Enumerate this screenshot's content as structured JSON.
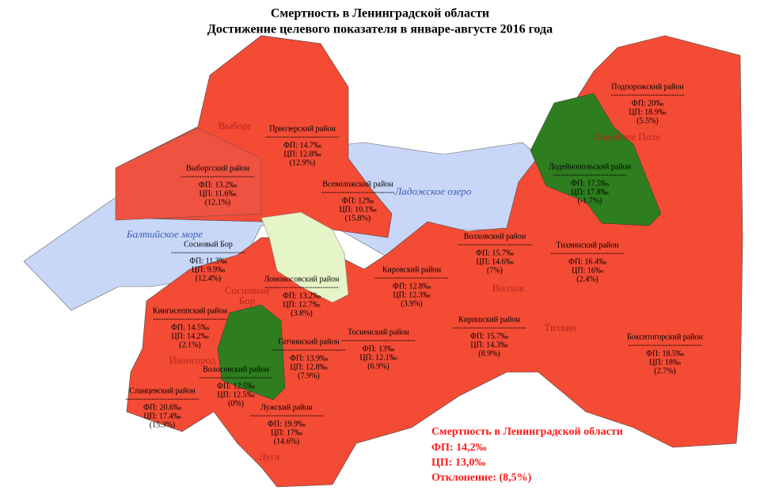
{
  "header": {
    "title": [
      "Смертность в Ленинградской области",
      "Достижение целевого показателя в январе-августе 2016 года"
    ]
  },
  "separator": "----------------------------",
  "districts": [
    {
      "name": "Подпорожский район",
      "fp": "ФП: 20‰",
      "cp": "ЦП: 18.9‰",
      "deviation": "(5.5%)"
    },
    {
      "name": "Приозерский район",
      "fp": "ФП: 14.7‰",
      "cp": "ЦП: 12.8‰",
      "deviation": "(12.9%)"
    },
    {
      "name": "Выборгский район",
      "fp": "ФП: 13.2‰",
      "cp": "ЦП: 11.6‰",
      "deviation": "(12.1%)"
    },
    {
      "name": "Всеволожский район",
      "fp": "ФП: 12‰",
      "cp": "ЦП: 10.1‰",
      "deviation": "(15.8%)"
    },
    {
      "name": "Лодейнопольский район",
      "fp": "ФП: 17.5‰",
      "cp": "ЦП: 17.8‰",
      "deviation": "(-1.7%)"
    },
    {
      "name": "Сосновый Бор",
      "fp": "ФП: 11.3‰",
      "cp": "ЦП: 9.9‰",
      "deviation": "(12.4%)"
    },
    {
      "name": "Волховский район",
      "fp": "ФП: 15.7‰",
      "cp": "ЦП: 14.6‰",
      "deviation": "(7%)"
    },
    {
      "name": "Тихвинский район",
      "fp": "ФП: 16.4‰",
      "cp": "ЦП: 16‰",
      "deviation": "(2.4%)"
    },
    {
      "name": "Ломоносовский район",
      "fp": "ФП: 13.2‰",
      "cp": "ЦП: 12.7‰",
      "deviation": "(3.8%)"
    },
    {
      "name": "Кировский район",
      "fp": "ФП: 12.8‰",
      "cp": "ЦП: 12.3‰",
      "deviation": "(3.9%)"
    },
    {
      "name": "Кингисеппский район",
      "fp": "ФП: 14.5‰",
      "cp": "ЦП: 14.2‰",
      "deviation": "(2.1%)"
    },
    {
      "name": "Киришский район",
      "fp": "ФП: 15.7‰",
      "cp": "ЦП: 14.3‰",
      "deviation": "(8.9%)"
    },
    {
      "name": "Тосненский район",
      "fp": "ФП: 13‰",
      "cp": "ЦП: 12.1‰",
      "deviation": "(6.9%)"
    },
    {
      "name": "Гатчинский район",
      "fp": "ФП: 13.9‰",
      "cp": "ЦП: 12.8‰",
      "deviation": "(7.9%)"
    },
    {
      "name": "Бокситогорский район",
      "fp": "ФП: 18.5‰",
      "cp": "ЦП: 18‰",
      "deviation": "(2.7%)"
    },
    {
      "name": "Волосовский район",
      "fp": "ФП: 12.5‰",
      "cp": "ЦП: 12.5‰",
      "deviation": "(0%)"
    },
    {
      "name": "Сланцевский район",
      "fp": "ФП: 20.6‰",
      "cp": "ЦП: 17.4‰",
      "deviation": "(15.3%)"
    },
    {
      "name": "Лужский район",
      "fp": "ФП: 19.9‰",
      "cp": "ЦП: 17‰",
      "deviation": "(14.6%)"
    }
  ],
  "cities": [
    "Выборг",
    "Лодейное Поле",
    "Сосновый",
    "Бор",
    "Волхов",
    "Тихвин",
    "Ивангород",
    "Луга"
  ],
  "water": [
    "Ладожское озеро",
    "Балтийское море"
  ],
  "summary": {
    "title": "Смертность в Ленинградской области",
    "fp": "ФП: 14,2‰",
    "cp": "ЦП: 13,0‰",
    "deviation": "Отклонение: (8,5%)"
  }
}
